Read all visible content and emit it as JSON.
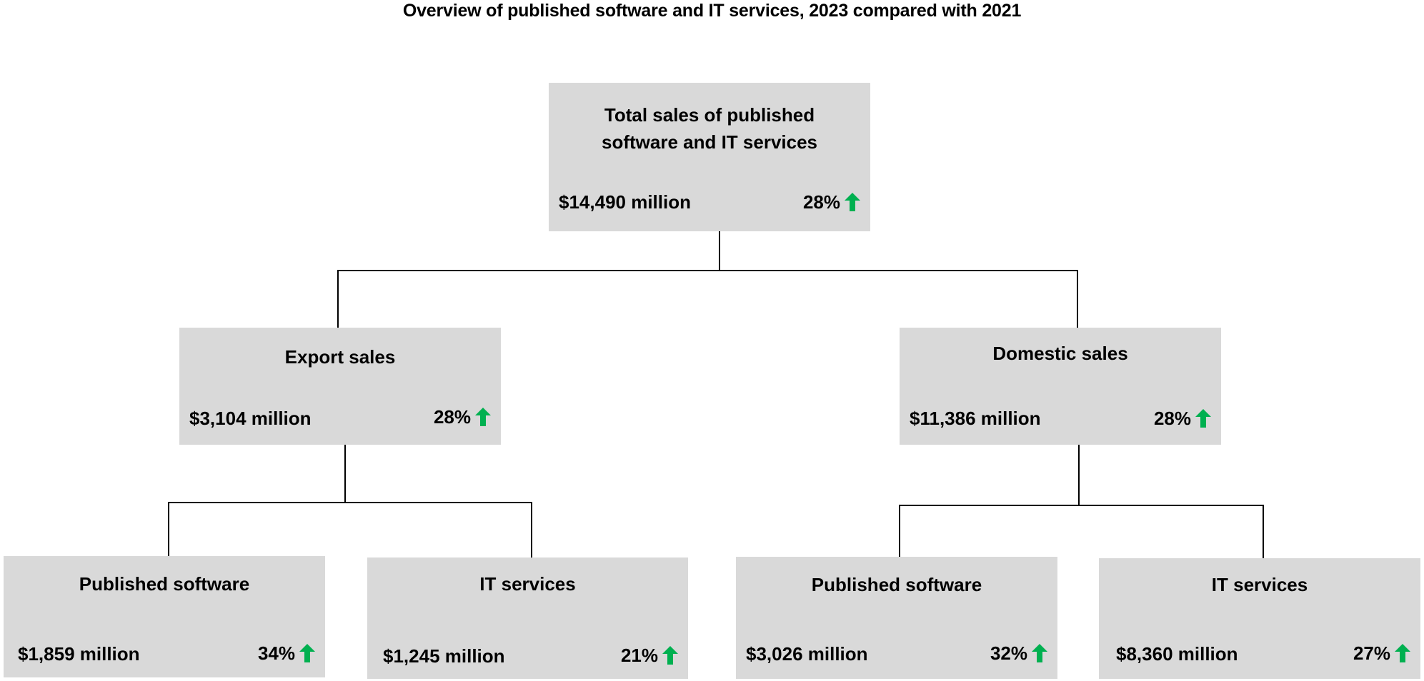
{
  "title": "Overview of published software and IT services, 2023 compared with 2021",
  "colors": {
    "box_fill": "#d9d9d9",
    "arrow": "#00b050",
    "connector": "#000000"
  },
  "nodes": {
    "total": {
      "label": "Total sales of published software and IT services",
      "label_line1": "Total sales of published",
      "label_line2": "software and IT services",
      "value": "$14,490 million",
      "change": "28%",
      "trend_icon": "arrow-up-icon"
    },
    "export": {
      "label": "Export sales",
      "value": "$3,104 million",
      "change": "28%",
      "trend_icon": "arrow-up-icon"
    },
    "domestic": {
      "label": "Domestic sales",
      "value": "$11,386 million",
      "change": "28%",
      "trend_icon": "arrow-up-icon"
    },
    "export_software": {
      "label": "Published software",
      "value": "$1,859 million",
      "change": "34%",
      "trend_icon": "arrow-up-icon"
    },
    "export_it": {
      "label": "IT services",
      "value": "$1,245 million",
      "change": "21%",
      "trend_icon": "arrow-up-icon"
    },
    "domestic_software": {
      "label": "Published software",
      "value": "$3,026 million",
      "change": "32%",
      "trend_icon": "arrow-up-icon"
    },
    "domestic_it": {
      "label": "IT services",
      "value": "$8,360 million",
      "change": "27%",
      "trend_icon": "arrow-up-icon"
    }
  }
}
